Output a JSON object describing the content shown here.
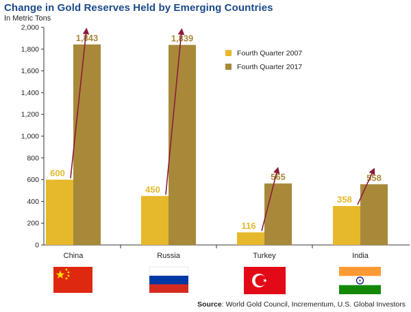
{
  "chart_data": {
    "type": "bar",
    "title": "Change in Gold Reserves Held by Emerging Countries",
    "subtitle": "In Metric Tons",
    "categories": [
      "China",
      "Russia",
      "Turkey",
      "India"
    ],
    "series": [
      {
        "name": "Fourth Quarter 2007",
        "values": [
          600,
          450,
          116,
          358
        ],
        "color": "#e6b82b"
      },
      {
        "name": "Fourth Quarter 2017",
        "values": [
          1843,
          1839,
          565,
          558
        ],
        "color": "#a8893a"
      }
    ],
    "ylim": [
      0,
      2000
    ],
    "yticks": [
      0,
      200,
      400,
      600,
      800,
      1000,
      1200,
      1400,
      1600,
      1800,
      2000
    ],
    "ytick_labels": [
      "0",
      "200",
      "400",
      "600",
      "800",
      "1,000",
      "1,200",
      "1,400",
      "1,600",
      "1,800",
      "2,000"
    ],
    "data_labels_2007": [
      "600",
      "450",
      "116",
      "358"
    ],
    "data_labels_2017": [
      "1,843",
      "1,839",
      "565",
      "558"
    ],
    "legend_position": "top-right",
    "grid": false,
    "arrow_color": "#8b1a3a",
    "flags": [
      "china-flag",
      "russia-flag",
      "turkey-flag",
      "india-flag"
    ]
  },
  "source": {
    "label": "Source",
    "text": ": World Gold Council, Incrementum, U.S. Global Investors"
  }
}
